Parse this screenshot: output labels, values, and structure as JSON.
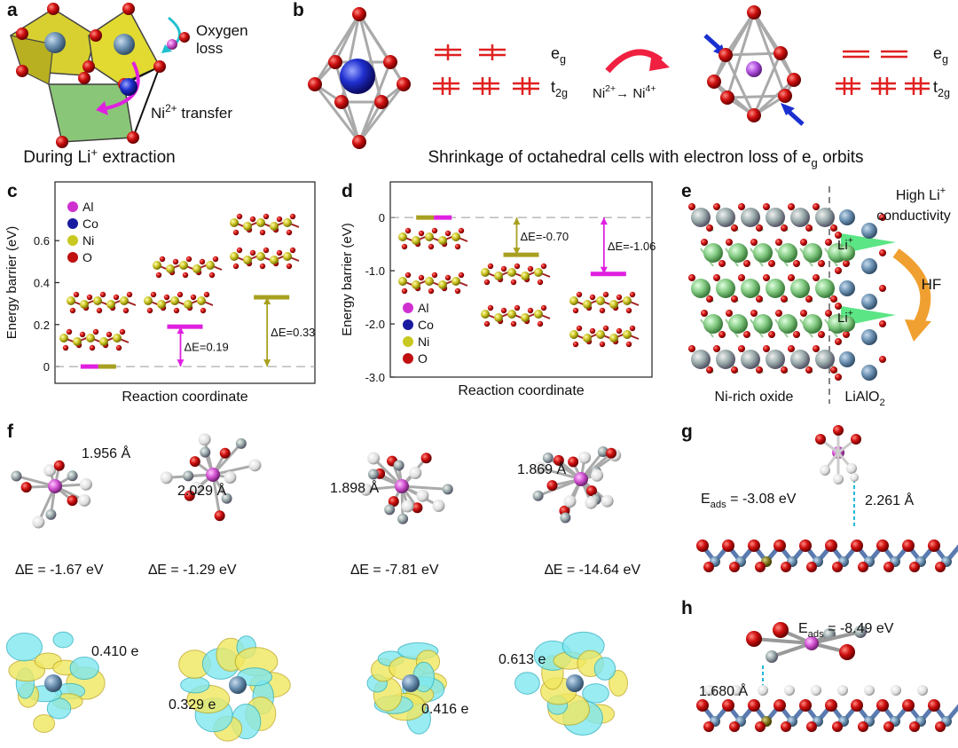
{
  "panel_labels": [
    "a",
    "b",
    "c",
    "d",
    "e",
    "f",
    "g",
    "h"
  ],
  "panel_a": {
    "oxygen_loss": [
      "Oxygen",
      "loss"
    ],
    "ni_transfer": {
      "base": "Ni",
      "sup": "2+",
      "text": " transfer"
    },
    "caption": {
      "text": "During Li",
      "sup": "+",
      "tail": " extraction"
    }
  },
  "panel_b": {
    "eg": {
      "base": "e",
      "sub": "g"
    },
    "t2g": {
      "base": "t",
      "sub": "2g"
    },
    "transition": {
      "from": "Ni",
      "from_sup": "2+",
      "arrow": "→ ",
      "to": "Ni",
      "to_sup": "4+"
    },
    "caption": {
      "text": "Shrinkage of octahedral cells with electron loss of e",
      "sub": "g",
      "tail": " orbits"
    }
  },
  "chart_data": [
    {
      "type": "level",
      "ylabel": "Energy barrier (eV)",
      "xlabel": "Reaction coordinate",
      "categories": [
        null,
        null,
        null
      ],
      "ylim": [
        -0.08,
        0.88
      ],
      "yticks": [
        0,
        0.2,
        0.4,
        0.6
      ],
      "zero_line": true,
      "series": [
        {
          "color": "#e020e0",
          "values": [
            0,
            0.19,
            null
          ],
          "value_labels": [
            null,
            "ΔE=0.19",
            null
          ]
        },
        {
          "color": "#a8a020",
          "values": [
            0,
            null,
            0.33
          ],
          "value_labels": [
            null,
            null,
            "ΔE=0.33"
          ]
        }
      ],
      "legend": "upper left",
      "legend_items": [
        {
          "name": "Al",
          "color": "#d030d0"
        },
        {
          "name": "Co",
          "color": "#1a1aa0"
        },
        {
          "name": "Ni",
          "color": "#c8c820"
        },
        {
          "name": "O",
          "color": "#c01010"
        }
      ]
    },
    {
      "type": "level",
      "ylabel": "Energy barrier (eV)",
      "xlabel": "Reaction coordinate",
      "categories": [
        null,
        null,
        null
      ],
      "ylim": [
        -3,
        0.67
      ],
      "yticks": [
        0,
        {
          "value": -1,
          "label": "-1.0"
        },
        {
          "value": -2,
          "label": "-2.0"
        },
        {
          "value": -3,
          "label": "-3.0"
        }
      ],
      "zero_line": true,
      "series": [
        {
          "color": "#a8a020",
          "values": [
            0,
            -0.7,
            null
          ],
          "value_labels": [
            null,
            "ΔE=-0.70",
            null
          ]
        },
        {
          "color": "#e020e0",
          "values": [
            0,
            null,
            -1.06
          ],
          "value_labels": [
            null,
            null,
            "ΔE=-1.06"
          ]
        }
      ],
      "legend": "lower left",
      "legend_items": [
        {
          "name": "Al",
          "color": "#d030d0"
        },
        {
          "name": "Co",
          "color": "#1a1aa0"
        },
        {
          "name": "Ni",
          "color": "#c8c820"
        },
        {
          "name": "O",
          "color": "#c01010"
        }
      ]
    }
  ],
  "panel_e": {
    "conductivity": {
      "text": "High Li",
      "sup": "+",
      "line2": "conductivity"
    },
    "hf": "HF",
    "li_ion": {
      "base": "Li",
      "sup": "+"
    },
    "left_label": "Ni-rich oxide",
    "right_label": {
      "base": "LiAlO",
      "sub": "2"
    }
  },
  "panel_f": {
    "molecules": [
      {
        "bond": "1.956 Å",
        "energy": "∆E = -1.67 eV",
        "charge": "0.410 e"
      },
      {
        "bond": "2.029 Å",
        "energy": "∆E = -1.29 eV",
        "charge": "0.329 e"
      },
      {
        "bond": "1.898 Å",
        "energy": "∆E = -7.81 eV",
        "charge": "0.416 e"
      },
      {
        "bond": "1.869 Å",
        "energy": "∆E = -14.64 eV",
        "charge": "0.613 e"
      }
    ]
  },
  "panel_g": {
    "eads": {
      "base": "E",
      "sub": "ads",
      "text": " = -3.08 eV"
    },
    "bond": "2.261 Å"
  },
  "panel_h": {
    "eads": {
      "base": "E",
      "sub": "ads",
      "text": " = -8.49 eV"
    },
    "bond": "1.680 Å"
  }
}
